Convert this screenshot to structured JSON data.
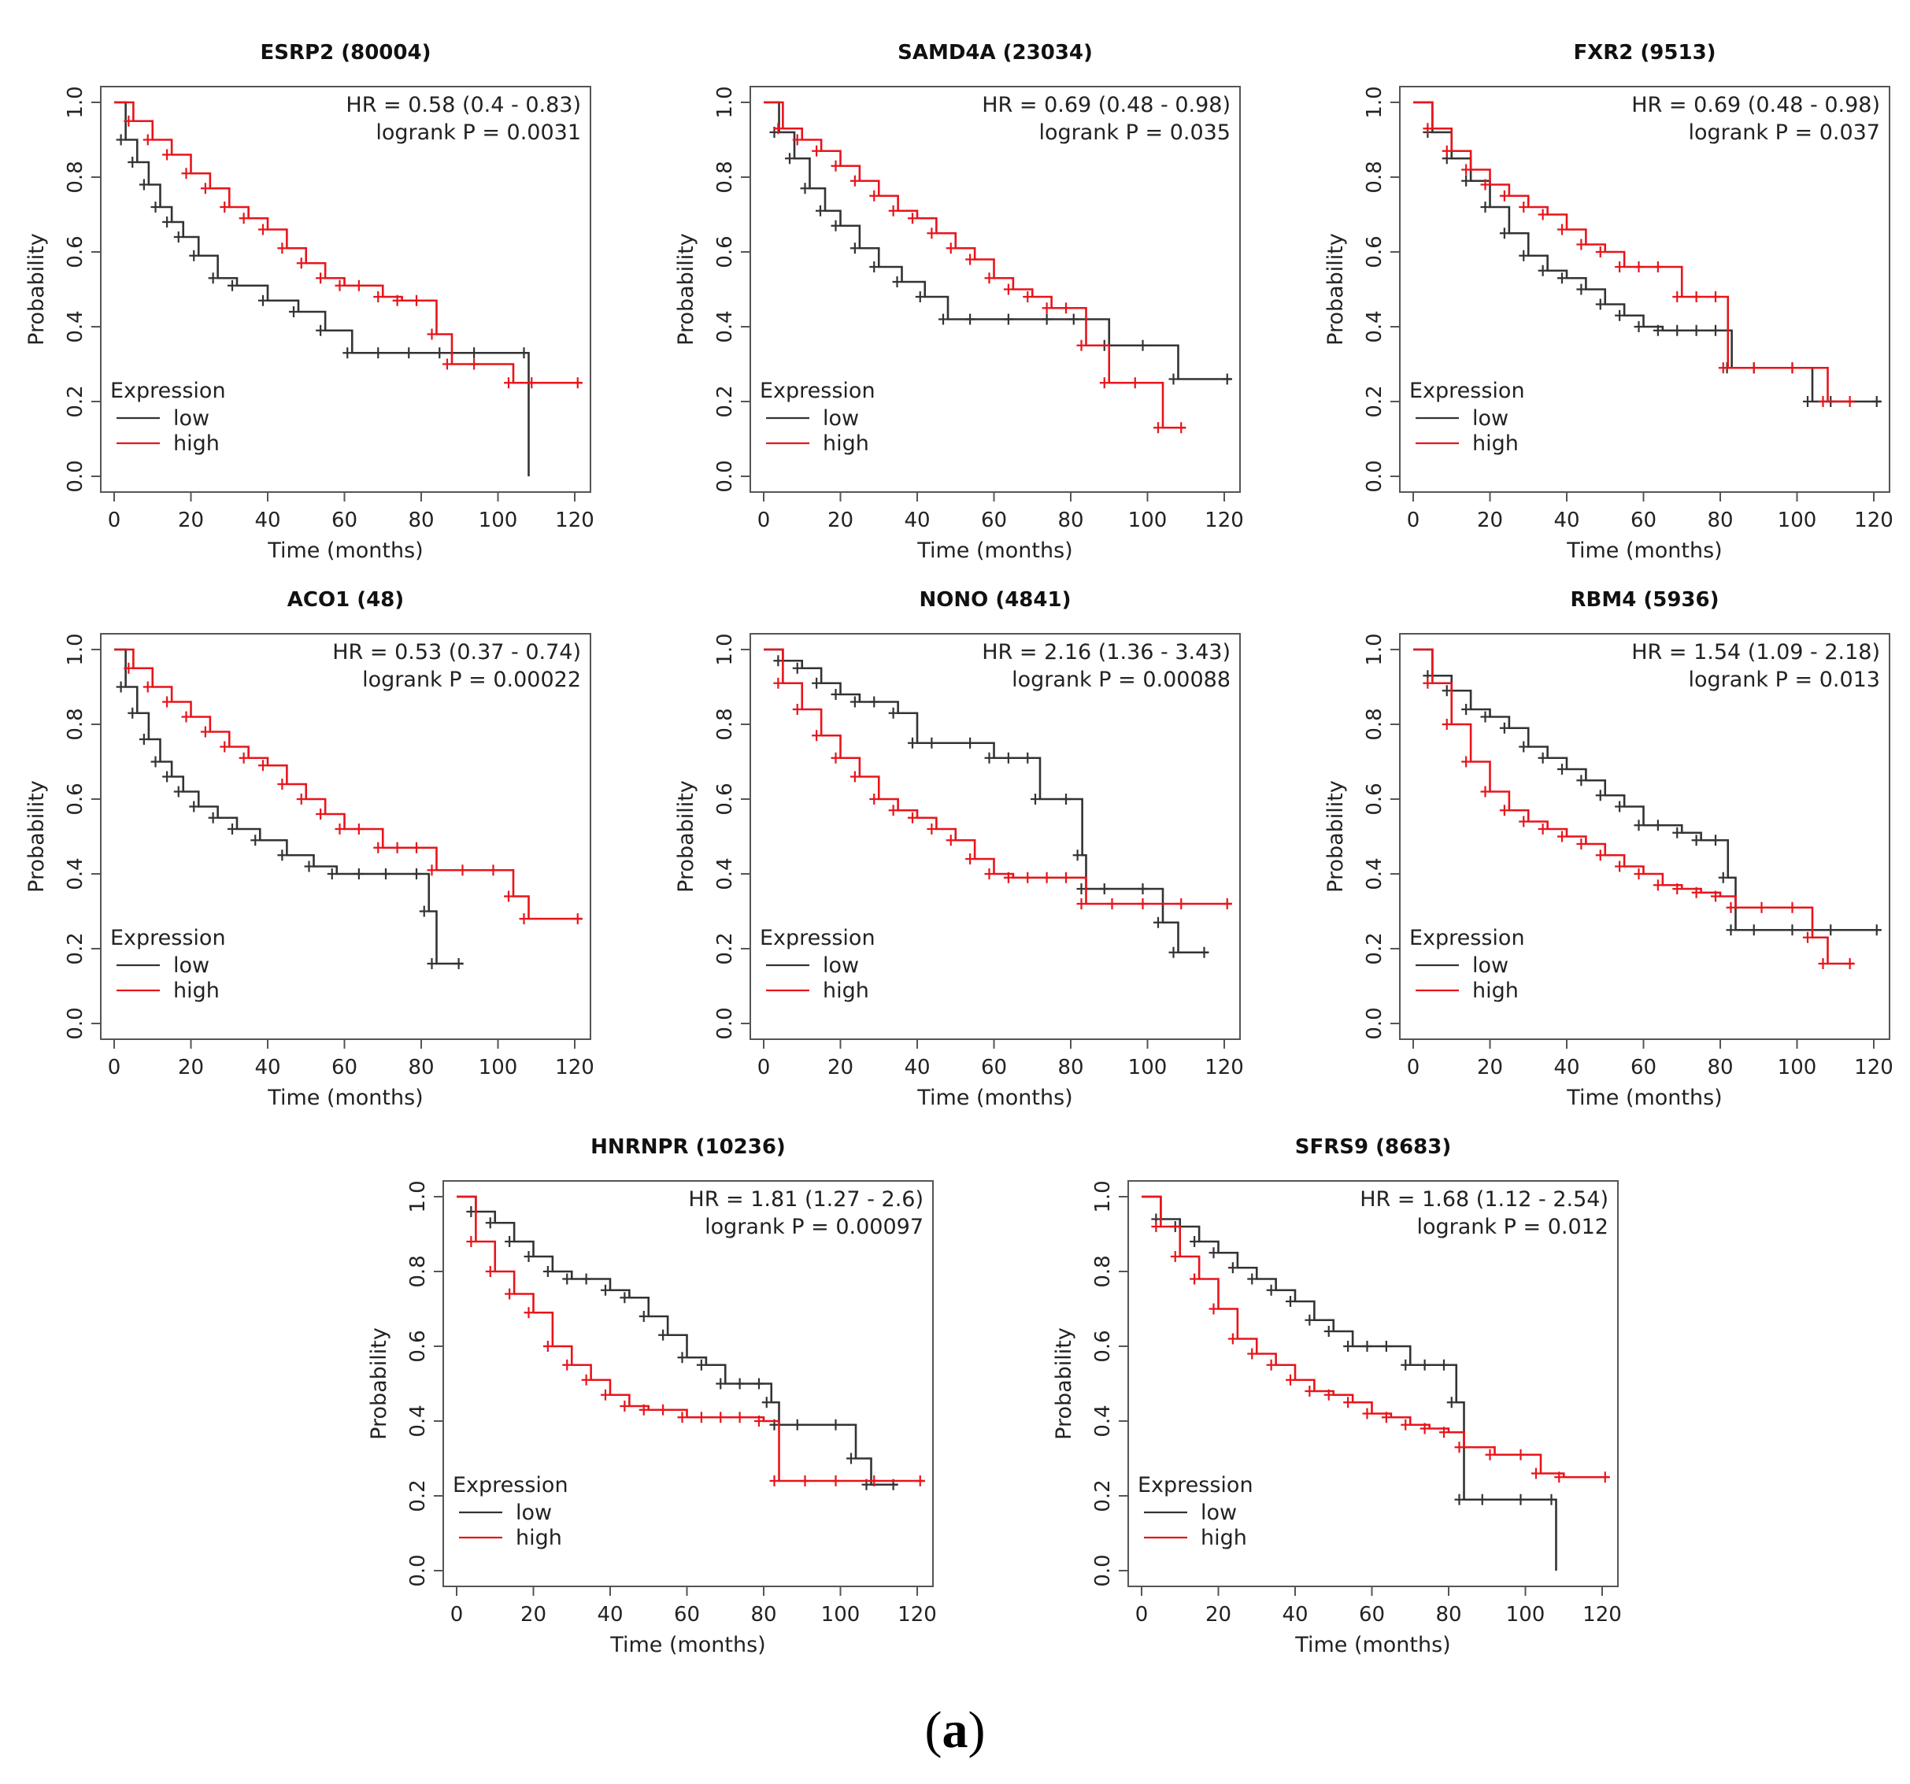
{
  "figure": {
    "caption_open": "(",
    "caption_letter": "a",
    "caption_close": ")"
  },
  "chart_data": [
    {
      "type": "line",
      "title": "ESRP2 (80004)",
      "xlabel": "Time (months)",
      "ylabel": "Probability",
      "xlim": [
        0,
        120
      ],
      "ylim": [
        0,
        1
      ],
      "xticks": [
        "0",
        "20",
        "40",
        "60",
        "80",
        "100",
        "120"
      ],
      "yticks": [
        "0.0",
        "0.2",
        "0.4",
        "0.6",
        "0.8",
        "1.0"
      ],
      "hr_text": "HR = 0.58 (0.4 - 0.83)",
      "p_text": "logrank P = 0.0031",
      "legend_title": "Expression",
      "colors": {
        "low": "#333333",
        "high": "#e8141b"
      },
      "series": [
        {
          "name": "low",
          "x": [
            0,
            3,
            6,
            9,
            12,
            15,
            18,
            22,
            27,
            32,
            40,
            48,
            55,
            62,
            70,
            78,
            86,
            95,
            108,
            108
          ],
          "y": [
            1.0,
            0.9,
            0.84,
            0.78,
            0.72,
            0.68,
            0.64,
            0.59,
            0.53,
            0.51,
            0.47,
            0.44,
            0.39,
            0.33,
            0.33,
            0.33,
            0.33,
            0.33,
            0.33,
            0.0
          ]
        },
        {
          "name": "high",
          "x": [
            0,
            5,
            10,
            15,
            20,
            25,
            30,
            35,
            40,
            45,
            50,
            55,
            60,
            65,
            70,
            75,
            80,
            84,
            88,
            95,
            104,
            110,
            122
          ],
          "y": [
            1.0,
            0.95,
            0.9,
            0.86,
            0.81,
            0.77,
            0.72,
            0.69,
            0.66,
            0.61,
            0.57,
            0.53,
            0.51,
            0.51,
            0.48,
            0.47,
            0.47,
            0.38,
            0.3,
            0.3,
            0.25,
            0.25,
            0.25
          ]
        }
      ]
    },
    {
      "type": "line",
      "title": "SAMD4A (23034)",
      "xlabel": "Time (months)",
      "ylabel": "Probability",
      "xlim": [
        0,
        120
      ],
      "ylim": [
        0,
        1
      ],
      "xticks": [
        "0",
        "20",
        "40",
        "60",
        "80",
        "100",
        "120"
      ],
      "yticks": [
        "0.0",
        "0.2",
        "0.4",
        "0.6",
        "0.8",
        "1.0"
      ],
      "hr_text": "HR = 0.69 (0.48 - 0.98)",
      "p_text": "logrank P = 0.035",
      "legend_title": "Expression",
      "colors": {
        "low": "#333333",
        "high": "#e8141b"
      },
      "series": [
        {
          "name": "low",
          "x": [
            0,
            4,
            8,
            12,
            16,
            20,
            25,
            30,
            36,
            42,
            48,
            55,
            65,
            75,
            82,
            90,
            100,
            108,
            122
          ],
          "y": [
            1.0,
            0.92,
            0.85,
            0.77,
            0.71,
            0.67,
            0.61,
            0.56,
            0.52,
            0.48,
            0.42,
            0.42,
            0.42,
            0.42,
            0.42,
            0.35,
            0.35,
            0.26,
            0.26
          ]
        },
        {
          "name": "high",
          "x": [
            0,
            5,
            10,
            15,
            20,
            25,
            30,
            35,
            40,
            45,
            50,
            55,
            60,
            65,
            70,
            75,
            80,
            84,
            90,
            98,
            104,
            110
          ],
          "y": [
            1.0,
            0.93,
            0.9,
            0.87,
            0.83,
            0.79,
            0.75,
            0.71,
            0.69,
            0.65,
            0.61,
            0.58,
            0.53,
            0.5,
            0.48,
            0.45,
            0.45,
            0.35,
            0.25,
            0.25,
            0.13,
            0.13
          ]
        }
      ]
    },
    {
      "type": "line",
      "title": "FXR2 (9513)",
      "xlabel": "Time (months)",
      "ylabel": "Probability",
      "xlim": [
        0,
        120
      ],
      "ylim": [
        0,
        1
      ],
      "xticks": [
        "0",
        "20",
        "40",
        "60",
        "80",
        "100",
        "120"
      ],
      "yticks": [
        "0.0",
        "0.2",
        "0.4",
        "0.6",
        "0.8",
        "1.0"
      ],
      "hr_text": "HR = 0.69 (0.48 - 0.98)",
      "p_text": "logrank P = 0.037",
      "legend_title": "Expression",
      "colors": {
        "low": "#333333",
        "high": "#e8141b"
      },
      "series": [
        {
          "name": "low",
          "x": [
            0,
            5,
            10,
            15,
            20,
            25,
            30,
            35,
            40,
            45,
            50,
            55,
            60,
            65,
            70,
            75,
            80,
            83,
            90,
            100,
            104,
            110,
            122
          ],
          "y": [
            1.0,
            0.92,
            0.85,
            0.79,
            0.72,
            0.65,
            0.59,
            0.55,
            0.53,
            0.5,
            0.46,
            0.43,
            0.4,
            0.39,
            0.39,
            0.39,
            0.39,
            0.29,
            0.29,
            0.29,
            0.2,
            0.2,
            0.2
          ]
        },
        {
          "name": "high",
          "x": [
            0,
            5,
            10,
            15,
            20,
            25,
            30,
            35,
            40,
            45,
            50,
            55,
            60,
            65,
            70,
            75,
            80,
            82,
            90,
            100,
            108,
            115
          ],
          "y": [
            1.0,
            0.93,
            0.87,
            0.82,
            0.78,
            0.75,
            0.72,
            0.7,
            0.66,
            0.62,
            0.6,
            0.56,
            0.56,
            0.56,
            0.48,
            0.48,
            0.48,
            0.29,
            0.29,
            0.29,
            0.2,
            0.2
          ]
        }
      ]
    },
    {
      "type": "line",
      "title": "ACO1 (48)",
      "xlabel": "Time (months)",
      "ylabel": "Probability",
      "xlim": [
        0,
        120
      ],
      "ylim": [
        0,
        1
      ],
      "xticks": [
        "0",
        "20",
        "40",
        "60",
        "80",
        "100",
        "120"
      ],
      "yticks": [
        "0.0",
        "0.2",
        "0.4",
        "0.6",
        "0.8",
        "1.0"
      ],
      "hr_text": "HR = 0.53 (0.37 - 0.74)",
      "p_text": "logrank P = 0.00022",
      "legend_title": "Expression",
      "colors": {
        "low": "#333333",
        "high": "#e8141b"
      },
      "series": [
        {
          "name": "low",
          "x": [
            0,
            3,
            6,
            9,
            12,
            15,
            18,
            22,
            27,
            32,
            38,
            45,
            52,
            58,
            65,
            72,
            80,
            82,
            84,
            91
          ],
          "y": [
            1.0,
            0.9,
            0.83,
            0.76,
            0.7,
            0.66,
            0.62,
            0.58,
            0.55,
            0.52,
            0.49,
            0.45,
            0.42,
            0.4,
            0.4,
            0.4,
            0.4,
            0.3,
            0.16,
            0.16
          ]
        },
        {
          "name": "high",
          "x": [
            0,
            5,
            10,
            15,
            20,
            25,
            30,
            35,
            40,
            45,
            50,
            55,
            60,
            65,
            70,
            75,
            80,
            84,
            92,
            100,
            104,
            108,
            122
          ],
          "y": [
            1.0,
            0.95,
            0.9,
            0.86,
            0.82,
            0.78,
            0.74,
            0.71,
            0.69,
            0.64,
            0.6,
            0.56,
            0.52,
            0.52,
            0.47,
            0.47,
            0.47,
            0.41,
            0.41,
            0.41,
            0.34,
            0.28,
            0.28
          ]
        }
      ]
    },
    {
      "type": "line",
      "title": "NONO (4841)",
      "xlabel": "Time (months)",
      "ylabel": "Probability",
      "xlim": [
        0,
        120
      ],
      "ylim": [
        0,
        1
      ],
      "xticks": [
        "0",
        "20",
        "40",
        "60",
        "80",
        "100",
        "120"
      ],
      "yticks": [
        "0.0",
        "0.2",
        "0.4",
        "0.6",
        "0.8",
        "1.0"
      ],
      "hr_text": "HR = 2.16 (1.36 - 3.43)",
      "p_text": "logrank P = 0.00088",
      "legend_title": "Expression",
      "colors": {
        "low": "#333333",
        "high": "#e8141b"
      },
      "series": [
        {
          "name": "low",
          "x": [
            0,
            5,
            10,
            15,
            20,
            25,
            30,
            35,
            40,
            45,
            55,
            60,
            65,
            70,
            72,
            80,
            83,
            84,
            90,
            100,
            104,
            108,
            116
          ],
          "y": [
            1.0,
            0.97,
            0.95,
            0.91,
            0.88,
            0.86,
            0.86,
            0.83,
            0.75,
            0.75,
            0.75,
            0.71,
            0.71,
            0.71,
            0.6,
            0.6,
            0.45,
            0.36,
            0.36,
            0.36,
            0.27,
            0.19,
            0.19
          ]
        },
        {
          "name": "high",
          "x": [
            0,
            5,
            10,
            15,
            20,
            25,
            30,
            35,
            40,
            45,
            50,
            55,
            60,
            65,
            70,
            75,
            80,
            84,
            92,
            100,
            110,
            122
          ],
          "y": [
            1.0,
            0.91,
            0.84,
            0.77,
            0.71,
            0.66,
            0.6,
            0.57,
            0.55,
            0.52,
            0.49,
            0.44,
            0.4,
            0.39,
            0.39,
            0.39,
            0.39,
            0.32,
            0.32,
            0.32,
            0.32,
            0.32
          ]
        }
      ]
    },
    {
      "type": "line",
      "title": "RBM4 (5936)",
      "xlabel": "Time (months)",
      "ylabel": "Probability",
      "xlim": [
        0,
        120
      ],
      "ylim": [
        0,
        1
      ],
      "xticks": [
        "0",
        "20",
        "40",
        "60",
        "80",
        "100",
        "120"
      ],
      "yticks": [
        "0.0",
        "0.2",
        "0.4",
        "0.6",
        "0.8",
        "1.0"
      ],
      "hr_text": "HR = 1.54 (1.09 - 2.18)",
      "p_text": "logrank P = 0.013",
      "legend_title": "Expression",
      "colors": {
        "low": "#333333",
        "high": "#e8141b"
      },
      "series": [
        {
          "name": "low",
          "x": [
            0,
            5,
            10,
            15,
            20,
            25,
            30,
            35,
            40,
            45,
            50,
            55,
            60,
            65,
            70,
            75,
            80,
            82,
            84,
            90,
            100,
            110,
            122
          ],
          "y": [
            1.0,
            0.93,
            0.89,
            0.84,
            0.82,
            0.79,
            0.74,
            0.71,
            0.68,
            0.65,
            0.61,
            0.58,
            0.53,
            0.53,
            0.51,
            0.49,
            0.49,
            0.39,
            0.25,
            0.25,
            0.25,
            0.25,
            0.25
          ]
        },
        {
          "name": "high",
          "x": [
            0,
            5,
            10,
            15,
            20,
            25,
            30,
            35,
            40,
            45,
            50,
            55,
            60,
            65,
            70,
            75,
            80,
            84,
            92,
            100,
            104,
            108,
            115
          ],
          "y": [
            1.0,
            0.91,
            0.8,
            0.7,
            0.62,
            0.57,
            0.54,
            0.52,
            0.5,
            0.48,
            0.45,
            0.42,
            0.4,
            0.37,
            0.36,
            0.35,
            0.34,
            0.31,
            0.31,
            0.31,
            0.23,
            0.16,
            0.16
          ]
        }
      ]
    },
    {
      "type": "line",
      "title": "HNRNPR (10236)",
      "xlabel": "Time (months)",
      "ylabel": "Probability",
      "xlim": [
        0,
        120
      ],
      "ylim": [
        0,
        1
      ],
      "xticks": [
        "0",
        "20",
        "40",
        "60",
        "80",
        "100",
        "120"
      ],
      "yticks": [
        "0.0",
        "0.2",
        "0.4",
        "0.6",
        "0.8",
        "1.0"
      ],
      "hr_text": "HR = 1.81 (1.27 - 2.6)",
      "p_text": "logrank P = 0.00097",
      "legend_title": "Expression",
      "colors": {
        "low": "#333333",
        "high": "#e8141b"
      },
      "series": [
        {
          "name": "low",
          "x": [
            0,
            5,
            10,
            15,
            20,
            25,
            30,
            35,
            40,
            45,
            50,
            55,
            60,
            65,
            70,
            75,
            80,
            82,
            84,
            90,
            100,
            104,
            108,
            115
          ],
          "y": [
            1.0,
            0.96,
            0.93,
            0.88,
            0.84,
            0.8,
            0.78,
            0.78,
            0.75,
            0.73,
            0.68,
            0.63,
            0.57,
            0.55,
            0.5,
            0.5,
            0.5,
            0.45,
            0.39,
            0.39,
            0.39,
            0.3,
            0.23,
            0.23
          ]
        },
        {
          "name": "high",
          "x": [
            0,
            5,
            10,
            15,
            20,
            25,
            30,
            35,
            40,
            45,
            50,
            55,
            60,
            65,
            70,
            75,
            80,
            84,
            92,
            100,
            110,
            122
          ],
          "y": [
            1.0,
            0.88,
            0.8,
            0.74,
            0.69,
            0.6,
            0.55,
            0.51,
            0.47,
            0.44,
            0.43,
            0.43,
            0.41,
            0.41,
            0.41,
            0.41,
            0.4,
            0.24,
            0.24,
            0.24,
            0.24,
            0.24
          ]
        }
      ]
    },
    {
      "type": "line",
      "title": "SFRS9 (8683)",
      "xlabel": "Time (months)",
      "ylabel": "Probability",
      "xlim": [
        0,
        120
      ],
      "ylim": [
        0,
        1
      ],
      "xticks": [
        "0",
        "20",
        "40",
        "60",
        "80",
        "100",
        "120"
      ],
      "yticks": [
        "0.0",
        "0.2",
        "0.4",
        "0.6",
        "0.8",
        "1.0"
      ],
      "hr_text": "HR = 1.68 (1.12 - 2.54)",
      "p_text": "logrank P = 0.012",
      "legend_title": "Expression",
      "colors": {
        "low": "#333333",
        "high": "#e8141b"
      },
      "series": [
        {
          "name": "low",
          "x": [
            0,
            5,
            10,
            15,
            20,
            25,
            30,
            35,
            40,
            45,
            50,
            55,
            60,
            65,
            70,
            75,
            80,
            82,
            84,
            90,
            100,
            108,
            108
          ],
          "y": [
            1.0,
            0.94,
            0.92,
            0.88,
            0.85,
            0.81,
            0.78,
            0.75,
            0.72,
            0.67,
            0.64,
            0.6,
            0.6,
            0.6,
            0.55,
            0.55,
            0.55,
            0.45,
            0.19,
            0.19,
            0.19,
            0.19,
            0.0
          ]
        },
        {
          "name": "high",
          "x": [
            0,
            5,
            10,
            15,
            20,
            25,
            30,
            35,
            40,
            45,
            50,
            55,
            60,
            65,
            70,
            75,
            80,
            84,
            92,
            100,
            104,
            110,
            122
          ],
          "y": [
            1.0,
            0.92,
            0.84,
            0.78,
            0.7,
            0.62,
            0.58,
            0.55,
            0.51,
            0.48,
            0.47,
            0.45,
            0.42,
            0.41,
            0.39,
            0.38,
            0.37,
            0.33,
            0.31,
            0.31,
            0.26,
            0.25,
            0.25
          ]
        }
      ]
    }
  ]
}
